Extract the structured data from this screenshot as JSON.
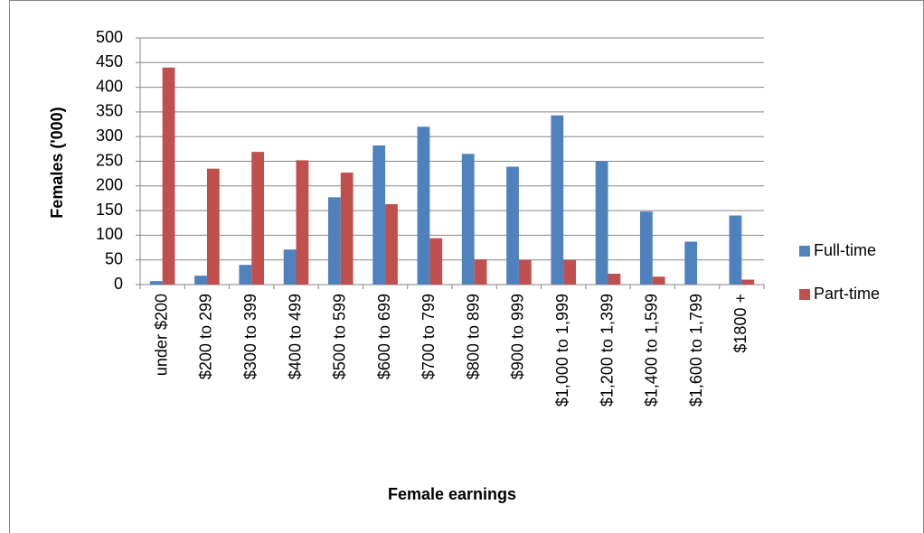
{
  "chart_data": {
    "type": "bar",
    "x_label": "Female earnings",
    "y_label": "Females ('000)",
    "categories": [
      "under $200",
      "$200 to 299",
      "$300 to 399",
      "$400 to 499",
      "$500 to 599",
      "$600 to 699",
      "$700 to 799",
      "$800 to 899",
      "$900 to 999",
      "$1,000 to 1,999",
      "$1,200 to 1,399",
      "$1,400 to 1,599",
      "$1,600 to 1,799",
      "$1800 +"
    ],
    "series": [
      {
        "name": "Full-time",
        "color": "#4f81bd",
        "values": [
          7,
          18,
          40,
          71,
          177,
          282,
          320,
          265,
          239,
          343,
          250,
          148,
          87,
          140
        ]
      },
      {
        "name": "Part-time",
        "color": "#c0504d",
        "values": [
          440,
          235,
          269,
          252,
          227,
          163,
          94,
          51,
          50,
          50,
          22,
          16,
          0,
          10
        ]
      }
    ],
    "ylim": [
      0,
      500
    ],
    "yticks": [
      0,
      50,
      100,
      150,
      200,
      250,
      300,
      350,
      400,
      450,
      500
    ],
    "grid": true,
    "legend": "right"
  }
}
